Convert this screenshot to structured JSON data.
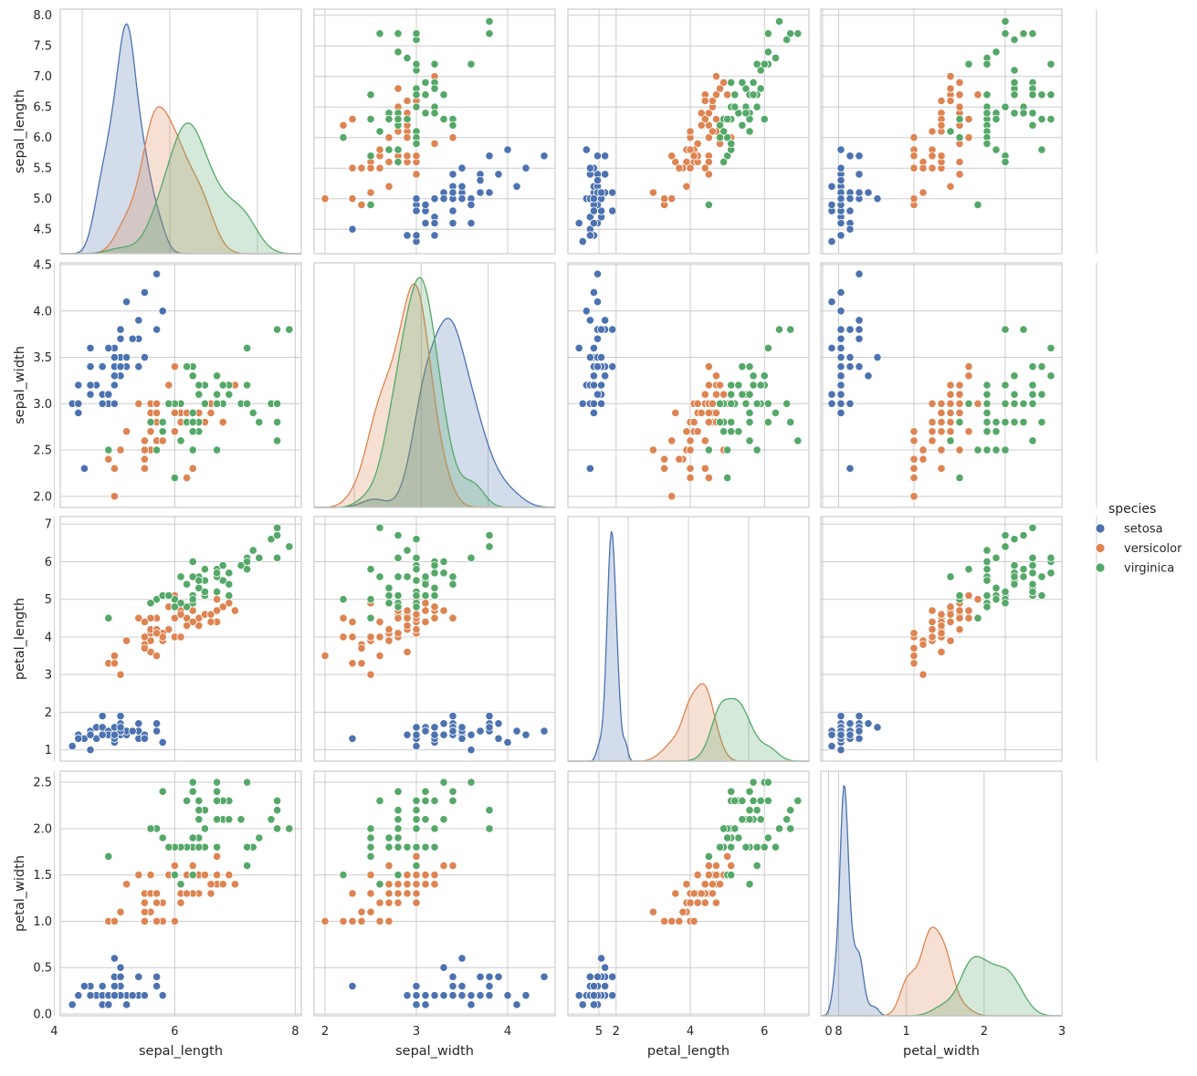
{
  "chart_data": {
    "type": "scatter",
    "layout": "pairplot",
    "variables": [
      "sepal_length",
      "sepal_width",
      "petal_length",
      "petal_width"
    ],
    "diagonal": "kde",
    "grid": true,
    "legend": {
      "title": "species",
      "placement": "right-center",
      "entries": [
        "setosa",
        "versicolor",
        "virginica"
      ]
    },
    "colors": {
      "setosa": "#4c72b0",
      "versicolor": "#dd8452",
      "virginica": "#55a868"
    },
    "axes": {
      "sepal_length": {
        "range": [
          4.1,
          8.1
        ],
        "diag_x_range": [
          3.5,
          9.0
        ],
        "ticks_y": [
          "4.5",
          "5.0",
          "5.5",
          "6.0",
          "6.5",
          "7.0",
          "7.5",
          "8.0"
        ],
        "ticks_x": [
          "4",
          "6",
          "8"
        ]
      },
      "sepal_width": {
        "range": [
          1.88,
          4.52
        ],
        "diag_x_range": [
          1.4,
          5.0
        ],
        "ticks_y": [
          "2.0",
          "2.5",
          "3.0",
          "3.5",
          "4.0",
          "4.5"
        ],
        "ticks_x": [
          "2",
          "3",
          "4",
          "5"
        ]
      },
      "petal_length": {
        "range": [
          0.7,
          7.2
        ],
        "diag_x_range": [
          0.0,
          8.0
        ],
        "ticks_y": [
          "1",
          "2",
          "3",
          "4",
          "5",
          "6",
          "7"
        ],
        "ticks_x": [
          "2",
          "4",
          "6",
          "8"
        ]
      },
      "petal_width": {
        "range": [
          -0.02,
          2.62
        ],
        "diag_x_range": [
          -0.1,
          3.0
        ],
        "ticks_y": [
          "0.0",
          "0.5",
          "1.0",
          "1.5",
          "2.0",
          "2.5"
        ],
        "ticks_x": [
          "0",
          "1",
          "2",
          "3"
        ]
      }
    },
    "series": [
      {
        "name": "setosa",
        "points": [
          [
            5.1,
            3.5,
            1.4,
            0.2
          ],
          [
            4.9,
            3.0,
            1.4,
            0.2
          ],
          [
            4.7,
            3.2,
            1.3,
            0.2
          ],
          [
            4.6,
            3.1,
            1.5,
            0.2
          ],
          [
            5.0,
            3.6,
            1.4,
            0.2
          ],
          [
            5.4,
            3.9,
            1.7,
            0.4
          ],
          [
            4.6,
            3.4,
            1.4,
            0.3
          ],
          [
            5.0,
            3.4,
            1.5,
            0.2
          ],
          [
            4.4,
            2.9,
            1.4,
            0.2
          ],
          [
            4.9,
            3.1,
            1.5,
            0.1
          ],
          [
            5.4,
            3.7,
            1.5,
            0.2
          ],
          [
            4.8,
            3.4,
            1.6,
            0.2
          ],
          [
            4.8,
            3.0,
            1.4,
            0.1
          ],
          [
            4.3,
            3.0,
            1.1,
            0.1
          ],
          [
            5.8,
            4.0,
            1.2,
            0.2
          ],
          [
            5.7,
            4.4,
            1.5,
            0.4
          ],
          [
            5.4,
            3.9,
            1.3,
            0.4
          ],
          [
            5.1,
            3.5,
            1.4,
            0.3
          ],
          [
            5.7,
            3.8,
            1.7,
            0.3
          ],
          [
            5.1,
            3.8,
            1.5,
            0.3
          ],
          [
            5.4,
            3.4,
            1.7,
            0.2
          ],
          [
            5.1,
            3.7,
            1.5,
            0.4
          ],
          [
            4.6,
            3.6,
            1.0,
            0.2
          ],
          [
            5.1,
            3.3,
            1.7,
            0.5
          ],
          [
            4.8,
            3.4,
            1.9,
            0.2
          ],
          [
            5.0,
            3.0,
            1.6,
            0.2
          ],
          [
            5.0,
            3.4,
            1.6,
            0.4
          ],
          [
            5.2,
            3.5,
            1.5,
            0.2
          ],
          [
            5.2,
            3.4,
            1.4,
            0.2
          ],
          [
            4.7,
            3.2,
            1.6,
            0.2
          ],
          [
            4.8,
            3.1,
            1.6,
            0.2
          ],
          [
            5.4,
            3.4,
            1.5,
            0.4
          ],
          [
            5.2,
            4.1,
            1.5,
            0.1
          ],
          [
            5.5,
            4.2,
            1.4,
            0.2
          ],
          [
            4.9,
            3.1,
            1.5,
            0.2
          ],
          [
            5.0,
            3.2,
            1.2,
            0.2
          ],
          [
            5.5,
            3.5,
            1.3,
            0.2
          ],
          [
            4.9,
            3.6,
            1.4,
            0.1
          ],
          [
            4.4,
            3.0,
            1.3,
            0.2
          ],
          [
            5.1,
            3.4,
            1.5,
            0.2
          ],
          [
            5.0,
            3.5,
            1.3,
            0.3
          ],
          [
            4.5,
            2.3,
            1.3,
            0.3
          ],
          [
            4.4,
            3.2,
            1.3,
            0.2
          ],
          [
            5.0,
            3.5,
            1.6,
            0.6
          ],
          [
            5.1,
            3.8,
            1.9,
            0.4
          ],
          [
            4.8,
            3.0,
            1.4,
            0.3
          ],
          [
            5.1,
            3.8,
            1.6,
            0.2
          ],
          [
            4.6,
            3.2,
            1.4,
            0.2
          ],
          [
            5.3,
            3.7,
            1.5,
            0.2
          ],
          [
            5.0,
            3.3,
            1.4,
            0.2
          ]
        ]
      },
      {
        "name": "versicolor",
        "points": [
          [
            7.0,
            3.2,
            4.7,
            1.4
          ],
          [
            6.4,
            3.2,
            4.5,
            1.5
          ],
          [
            6.9,
            3.1,
            4.9,
            1.5
          ],
          [
            5.5,
            2.3,
            4.0,
            1.3
          ],
          [
            6.5,
            2.8,
            4.6,
            1.5
          ],
          [
            5.7,
            2.8,
            4.5,
            1.3
          ],
          [
            6.3,
            3.3,
            4.7,
            1.6
          ],
          [
            4.9,
            2.4,
            3.3,
            1.0
          ],
          [
            6.6,
            2.9,
            4.6,
            1.3
          ],
          [
            5.2,
            2.7,
            3.9,
            1.4
          ],
          [
            5.0,
            2.0,
            3.5,
            1.0
          ],
          [
            5.9,
            3.0,
            4.2,
            1.5
          ],
          [
            6.0,
            2.2,
            4.0,
            1.0
          ],
          [
            6.1,
            2.9,
            4.7,
            1.4
          ],
          [
            5.6,
            2.9,
            3.6,
            1.3
          ],
          [
            6.7,
            3.1,
            4.4,
            1.4
          ],
          [
            5.6,
            3.0,
            4.5,
            1.5
          ],
          [
            5.8,
            2.7,
            4.1,
            1.0
          ],
          [
            6.2,
            2.2,
            4.5,
            1.5
          ],
          [
            5.6,
            2.5,
            3.9,
            1.1
          ],
          [
            5.9,
            3.2,
            4.8,
            1.8
          ],
          [
            6.1,
            2.8,
            4.0,
            1.3
          ],
          [
            6.3,
            2.5,
            4.9,
            1.5
          ],
          [
            6.1,
            2.8,
            4.7,
            1.2
          ],
          [
            6.4,
            2.9,
            4.3,
            1.3
          ],
          [
            6.6,
            3.0,
            4.4,
            1.4
          ],
          [
            6.8,
            2.8,
            4.8,
            1.4
          ],
          [
            6.7,
            3.0,
            5.0,
            1.7
          ],
          [
            6.0,
            2.9,
            4.5,
            1.5
          ],
          [
            5.7,
            2.6,
            3.5,
            1.0
          ],
          [
            5.5,
            2.4,
            3.8,
            1.1
          ],
          [
            5.5,
            2.4,
            3.7,
            1.0
          ],
          [
            5.8,
            2.7,
            3.9,
            1.2
          ],
          [
            6.0,
            2.7,
            5.1,
            1.6
          ],
          [
            5.4,
            3.0,
            4.5,
            1.5
          ],
          [
            6.0,
            3.4,
            4.5,
            1.6
          ],
          [
            6.7,
            3.1,
            4.7,
            1.5
          ],
          [
            6.3,
            2.3,
            4.4,
            1.3
          ],
          [
            5.6,
            3.0,
            4.1,
            1.3
          ],
          [
            5.5,
            2.5,
            4.0,
            1.3
          ],
          [
            5.5,
            2.6,
            4.4,
            1.2
          ],
          [
            6.1,
            3.0,
            4.6,
            1.4
          ],
          [
            5.8,
            2.6,
            4.0,
            1.2
          ],
          [
            5.0,
            2.3,
            3.3,
            1.0
          ],
          [
            5.6,
            2.7,
            4.2,
            1.3
          ],
          [
            5.7,
            3.0,
            4.2,
            1.2
          ],
          [
            5.7,
            2.9,
            4.2,
            1.3
          ],
          [
            6.2,
            2.9,
            4.3,
            1.3
          ],
          [
            5.1,
            2.5,
            3.0,
            1.1
          ],
          [
            5.7,
            2.8,
            4.1,
            1.3
          ]
        ]
      },
      {
        "name": "virginica",
        "points": [
          [
            6.3,
            3.3,
            6.0,
            2.5
          ],
          [
            5.8,
            2.7,
            5.1,
            1.9
          ],
          [
            7.1,
            3.0,
            5.9,
            2.1
          ],
          [
            6.3,
            2.9,
            5.6,
            1.8
          ],
          [
            6.5,
            3.0,
            5.8,
            2.2
          ],
          [
            7.6,
            3.0,
            6.6,
            2.1
          ],
          [
            4.9,
            2.5,
            4.5,
            1.7
          ],
          [
            7.3,
            2.9,
            6.3,
            1.8
          ],
          [
            6.7,
            2.5,
            5.8,
            1.8
          ],
          [
            7.2,
            3.6,
            6.1,
            2.5
          ],
          [
            6.5,
            3.2,
            5.1,
            2.0
          ],
          [
            6.4,
            2.7,
            5.3,
            1.9
          ],
          [
            6.8,
            3.0,
            5.5,
            2.1
          ],
          [
            5.7,
            2.5,
            5.0,
            2.0
          ],
          [
            5.8,
            2.8,
            5.1,
            2.4
          ],
          [
            6.4,
            3.2,
            5.3,
            2.3
          ],
          [
            6.5,
            3.0,
            5.5,
            1.8
          ],
          [
            7.7,
            3.8,
            6.7,
            2.2
          ],
          [
            7.7,
            2.6,
            6.9,
            2.3
          ],
          [
            6.0,
            2.2,
            5.0,
            1.5
          ],
          [
            6.9,
            3.2,
            5.7,
            2.3
          ],
          [
            5.6,
            2.8,
            4.9,
            2.0
          ],
          [
            7.7,
            2.8,
            6.7,
            2.0
          ],
          [
            6.3,
            2.7,
            4.9,
            1.8
          ],
          [
            6.7,
            3.3,
            5.7,
            2.1
          ],
          [
            7.2,
            3.2,
            6.0,
            1.8
          ],
          [
            6.2,
            2.8,
            4.8,
            1.8
          ],
          [
            6.1,
            3.0,
            4.9,
            1.8
          ],
          [
            6.4,
            2.8,
            5.6,
            2.1
          ],
          [
            7.2,
            3.0,
            5.8,
            1.6
          ],
          [
            7.4,
            2.8,
            6.1,
            1.9
          ],
          [
            7.9,
            3.8,
            6.4,
            2.0
          ],
          [
            6.4,
            2.8,
            5.6,
            2.2
          ],
          [
            6.3,
            2.8,
            5.1,
            1.5
          ],
          [
            6.1,
            2.6,
            5.6,
            1.4
          ],
          [
            7.7,
            3.0,
            6.1,
            2.3
          ],
          [
            6.3,
            3.4,
            5.6,
            2.4
          ],
          [
            6.4,
            3.1,
            5.5,
            1.8
          ],
          [
            6.0,
            3.0,
            4.8,
            1.8
          ],
          [
            6.9,
            3.1,
            5.4,
            2.1
          ],
          [
            6.7,
            3.1,
            5.6,
            2.4
          ],
          [
            6.9,
            3.1,
            5.1,
            2.3
          ],
          [
            5.8,
            2.7,
            5.1,
            1.9
          ],
          [
            6.8,
            3.2,
            5.9,
            2.3
          ],
          [
            6.7,
            3.3,
            5.7,
            2.5
          ],
          [
            6.7,
            3.0,
            5.2,
            2.3
          ],
          [
            6.3,
            2.5,
            5.0,
            1.9
          ],
          [
            6.5,
            3.0,
            5.2,
            2.0
          ],
          [
            6.2,
            3.4,
            5.4,
            2.3
          ],
          [
            5.9,
            3.0,
            5.1,
            1.8
          ]
        ]
      }
    ]
  }
}
